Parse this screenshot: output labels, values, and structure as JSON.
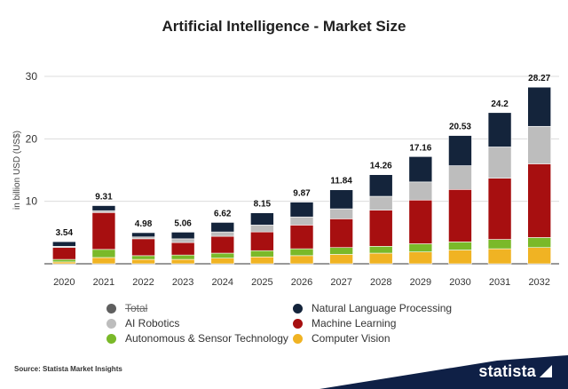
{
  "page": {
    "source": "Source: Statista Market Insights",
    "brand": "statista"
  },
  "chart_data": {
    "type": "bar",
    "stacked": true,
    "title": "Artificial Intelligence - Market Size",
    "ylabel": "in billion USD (US$)",
    "xlabel": "",
    "ylim": [
      0,
      30
    ],
    "yticks": [
      10,
      20,
      30
    ],
    "grid": true,
    "legend_position": "bottom",
    "categories": [
      "2020",
      "2021",
      "2022",
      "2023",
      "2024",
      "2025",
      "2026",
      "2027",
      "2028",
      "2029",
      "2030",
      "2031",
      "2032"
    ],
    "totals": [
      3.54,
      9.31,
      4.98,
      5.06,
      6.62,
      8.15,
      9.87,
      11.84,
      14.26,
      17.16,
      20.53,
      24.2,
      28.27
    ],
    "series": [
      {
        "name": "Computer Vision",
        "color": "#f0b323",
        "values": [
          0.3,
          1.0,
          0.7,
          0.7,
          0.9,
          1.1,
          1.3,
          1.5,
          1.7,
          1.9,
          2.2,
          2.4,
          2.6
        ]
      },
      {
        "name": "Autonomous & Sensor Technology",
        "color": "#7ab929",
        "values": [
          0.4,
          1.3,
          0.6,
          0.7,
          0.8,
          1.0,
          1.1,
          1.1,
          1.1,
          1.3,
          1.3,
          1.5,
          1.6
        ]
      },
      {
        "name": "Machine Learning",
        "color": "#a70f10",
        "values": [
          1.9,
          5.9,
          2.7,
          2.0,
          2.7,
          3.0,
          3.8,
          4.6,
          5.8,
          7.0,
          8.4,
          9.8,
          11.8
        ]
      },
      {
        "name": "AI Robotics",
        "color": "#bdbdbd",
        "values": [
          0.2,
          0.3,
          0.3,
          0.6,
          0.7,
          1.1,
          1.3,
          1.6,
          2.2,
          2.9,
          3.8,
          5.0,
          6.0
        ]
      },
      {
        "name": "Natural Language Processing",
        "color": "#14243b",
        "values": [
          0.74,
          0.81,
          0.68,
          1.06,
          1.52,
          1.95,
          2.37,
          3.04,
          3.46,
          4.06,
          4.83,
          5.5,
          6.27
        ]
      }
    ],
    "legend": [
      {
        "name": "Total",
        "color": "#5f5f5f",
        "hidden": true
      },
      {
        "name": "Natural Language Processing",
        "color": "#14243b"
      },
      {
        "name": "AI Robotics",
        "color": "#bdbdbd"
      },
      {
        "name": "Machine Learning",
        "color": "#a70f10"
      },
      {
        "name": "Autonomous & Sensor Technology",
        "color": "#7ab929"
      },
      {
        "name": "Computer Vision",
        "color": "#f0b323"
      }
    ]
  }
}
